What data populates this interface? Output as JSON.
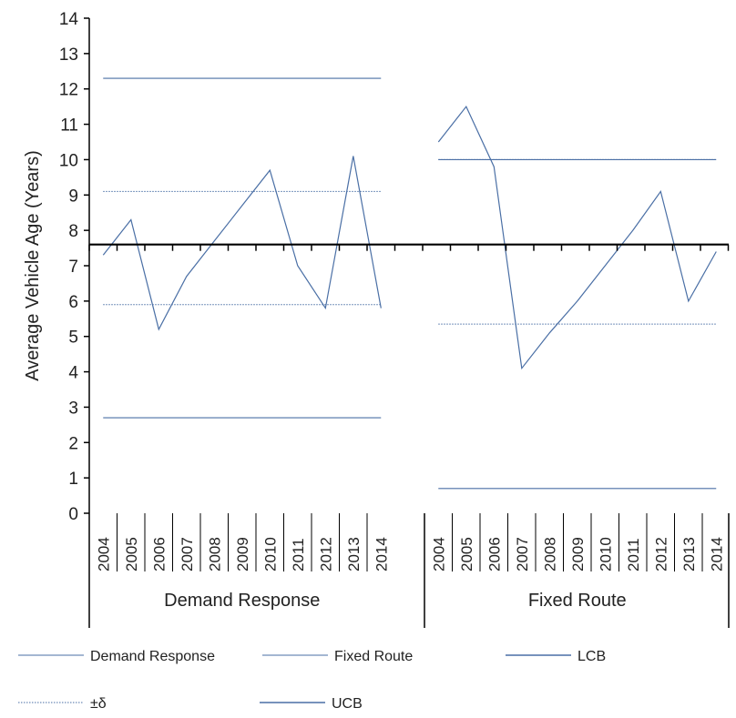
{
  "chart_data": {
    "type": "line",
    "title": "",
    "ylabel": "Average Vehicle Age (Years)",
    "xlabel": "",
    "ylim": [
      0,
      14
    ],
    "yticks": [
      0,
      1,
      2,
      3,
      4,
      5,
      6,
      7,
      8,
      9,
      10,
      11,
      12,
      13,
      14
    ],
    "center_line": 7.6,
    "groups": [
      {
        "name": "Demand Response",
        "years": [
          "2004",
          "2005",
          "2006",
          "2007",
          "2008",
          "2009",
          "2010",
          "2011",
          "2012",
          "2013",
          "2014"
        ],
        "values": [
          7.3,
          8.3,
          5.2,
          6.7,
          7.7,
          8.7,
          9.7,
          7.0,
          5.8,
          10.1,
          5.8
        ],
        "lcb": 2.7,
        "ucb": 12.3,
        "sigma_low": 5.9,
        "sigma_high": 9.1
      },
      {
        "name": "Fixed Route",
        "years": [
          "2004",
          "2005",
          "2006",
          "2007",
          "2008",
          "2009",
          "2010",
          "2011",
          "2012",
          "2013",
          "2014"
        ],
        "values": [
          10.5,
          11.5,
          9.8,
          4.1,
          5.1,
          6.0,
          7.0,
          8.0,
          9.1,
          6.0,
          7.4
        ],
        "lcb": 0.7,
        "ucb": 10.0,
        "sigma_low": 5.35,
        "sigma_high": 10.0
      }
    ],
    "legend": [
      {
        "label": "Demand Response",
        "style": "solid-thin"
      },
      {
        "label": "Fixed Route",
        "style": "solid-thin"
      },
      {
        "label": "LCB",
        "style": "solid"
      },
      {
        "label": "±δ",
        "style": "dotted"
      },
      {
        "label": "UCB",
        "style": "solid"
      }
    ],
    "legend_position": "bottom",
    "colors": {
      "series": "#4a6fa5",
      "bounds": "#4a6fa5",
      "axis": "#000000"
    }
  }
}
